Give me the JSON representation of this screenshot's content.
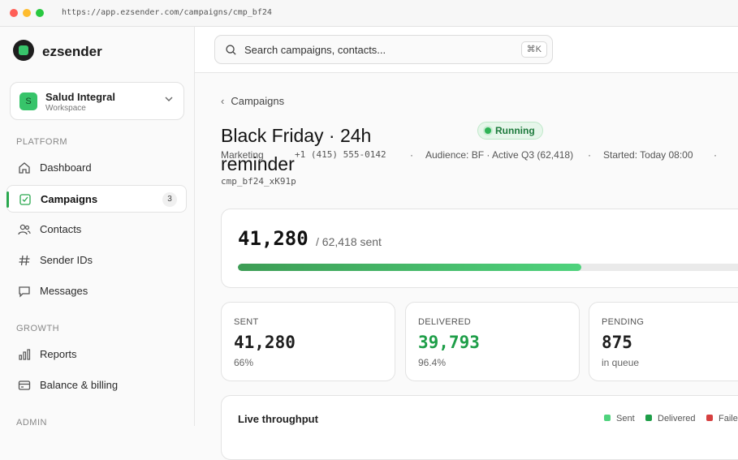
{
  "browser": {
    "url": "https://app.ezsender.com/campaigns/cmp_bf24"
  },
  "colors": {
    "accent": "#2aa84f",
    "delivered": "#1e9e48",
    "failed": "#d64040",
    "sent": "#4fd37d"
  },
  "sidebar": {
    "brand": "ezsender",
    "workspace": {
      "avatar": "S",
      "name": "Salud Integral",
      "sub": "Workspace"
    },
    "sections": {
      "platform": "PLATFORM",
      "growth": "GROWTH",
      "admin": "ADMIN"
    },
    "items": [
      {
        "label": "Dashboard",
        "icon": "home-icon"
      },
      {
        "label": "Campaigns",
        "icon": "campaign-icon",
        "badge": "3"
      },
      {
        "label": "Contacts",
        "icon": "contacts-icon"
      },
      {
        "label": "Sender IDs",
        "icon": "hash-icon"
      },
      {
        "label": "Messages",
        "icon": "message-icon"
      },
      {
        "label": "Reports",
        "icon": "bar-chart-icon"
      },
      {
        "label": "Balance & billing",
        "icon": "credit-card-icon"
      }
    ]
  },
  "topbar": {
    "search_placeholder": "Search campaigns, contacts...",
    "shortcut": "⌘K"
  },
  "campaign": {
    "breadcrumb": "Campaigns",
    "title": "Black Friday · 24h reminder",
    "status": "Running",
    "meta": {
      "type": "Marketing",
      "sender": "+1 (415) 555-0142",
      "sep": "·",
      "audience": "Audience: BF · Active Q3 (62,418)",
      "started": "Started: Today 08:00"
    },
    "id": "cmp_bf24_xK91p",
    "progress": {
      "sent": "41,280",
      "of": "/ 62,418 sent",
      "fraction": 0.661
    },
    "stats": [
      {
        "label": "SENT",
        "value": "41,280",
        "sub": "66%"
      },
      {
        "label": "DELIVERED",
        "value": "39,793",
        "sub": "96.4%"
      },
      {
        "label": "PENDING",
        "value": "875",
        "sub": "in queue"
      }
    ],
    "throughput": {
      "title": "Live throughput",
      "legend": [
        "Sent",
        "Delivered",
        "Failed"
      ]
    }
  }
}
